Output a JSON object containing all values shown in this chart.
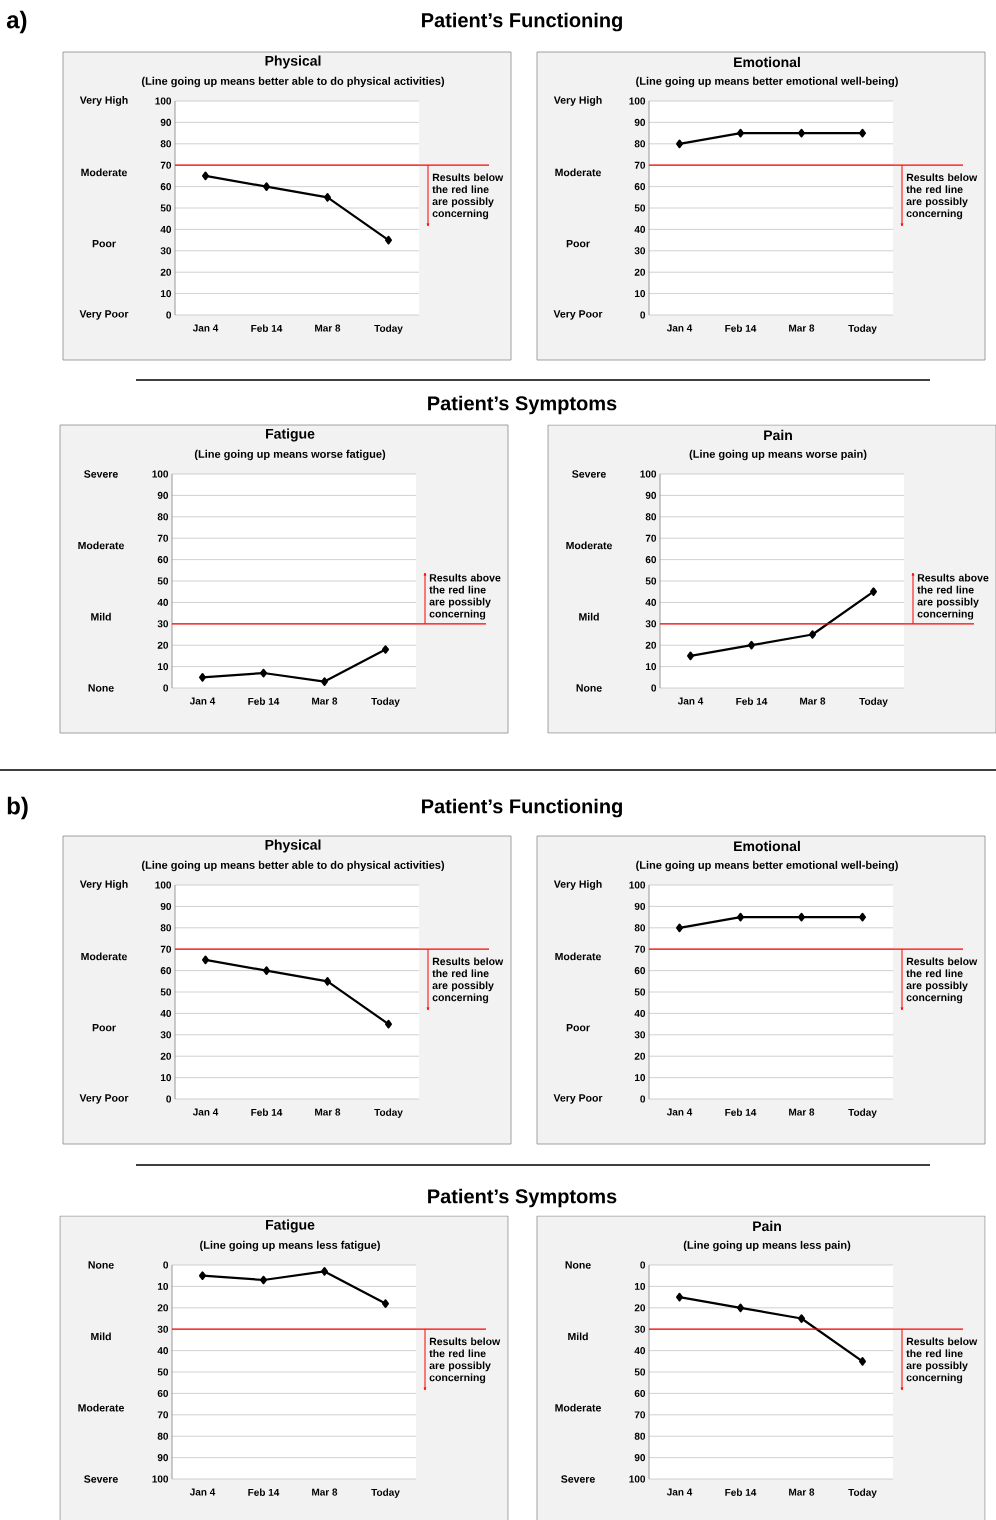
{
  "chart_data": [
    {
      "type": "other",
      "title": "Patient’s Functioning",
      "annotations": [
        "a)"
      ]
    },
    {
      "type": "line",
      "title": "Physical",
      "subtitle": "(Line going up means better able to do physical activities)",
      "categories": [
        "Jan 4",
        "Feb 14",
        "Mar 8",
        "Today"
      ],
      "values": [
        65,
        60,
        55,
        35
      ],
      "color": "#000000",
      "marker": "diamond",
      "grid": "y",
      "ylim": [
        0,
        100
      ],
      "yticks": [
        0,
        10,
        20,
        30,
        40,
        50,
        60,
        70,
        80,
        90,
        100
      ],
      "annotations": [
        "Very High",
        "Moderate",
        "Poor",
        "Very Poor"
      ],
      "ref_lines": [
        {
          "axis": "y",
          "value": 70,
          "label": "Results below the red line are possibly concerning",
          "color": "#ff0000"
        }
      ]
    },
    {
      "type": "line",
      "title": "Emotional",
      "subtitle": "(Line going up means better emotional well-being)",
      "categories": [
        "Jan 4",
        "Feb 14",
        "Mar 8",
        "Today"
      ],
      "values": [
        80,
        85,
        85,
        85
      ],
      "color": "#000000",
      "marker": "diamond",
      "grid": "y",
      "ylim": [
        0,
        100
      ],
      "yticks": [
        0,
        10,
        20,
        30,
        40,
        50,
        60,
        70,
        80,
        90,
        100
      ],
      "annotations": [
        "Very High",
        "Moderate",
        "Poor",
        "Very Poor"
      ],
      "ref_lines": [
        {
          "axis": "y",
          "value": 70,
          "label": "Results below the red line are possibly concerning",
          "color": "#ff0000"
        }
      ]
    },
    {
      "type": "other",
      "title": "Patient’s Symptoms"
    },
    {
      "type": "line",
      "title": "Fatigue",
      "subtitle": "(Line going up means worse fatigue)",
      "categories": [
        "Jan 4",
        "Feb 14",
        "Mar 8",
        "Today"
      ],
      "values": [
        5,
        7,
        3,
        18
      ],
      "color": "#000000",
      "marker": "diamond",
      "grid": "y",
      "ylim": [
        0,
        100
      ],
      "yticks": [
        0,
        10,
        20,
        30,
        40,
        50,
        60,
        70,
        80,
        90,
        100
      ],
      "annotations": [
        "Severe",
        "Moderate",
        "Mild",
        "None"
      ],
      "ref_lines": [
        {
          "axis": "y",
          "value": 30,
          "label": "Results above the red line are possibly concerning",
          "color": "#ff0000"
        }
      ]
    },
    {
      "type": "line",
      "title": "Pain",
      "subtitle": "(Line going up means worse pain)",
      "categories": [
        "Jan 4",
        "Feb 14",
        "Mar 8",
        "Today"
      ],
      "values": [
        15,
        20,
        25,
        45
      ],
      "color": "#000000",
      "marker": "diamond",
      "grid": "y",
      "ylim": [
        0,
        100
      ],
      "yticks": [
        0,
        10,
        20,
        30,
        40,
        50,
        60,
        70,
        80,
        90,
        100
      ],
      "annotations": [
        "Severe",
        "Moderate",
        "Mild",
        "None"
      ],
      "ref_lines": [
        {
          "axis": "y",
          "value": 30,
          "label": "Results above the red line are possibly concerning",
          "color": "#ff0000"
        }
      ]
    },
    {
      "type": "other",
      "title": "Patient’s Functioning",
      "annotations": [
        "b)"
      ]
    },
    {
      "type": "line",
      "title": "Physical",
      "subtitle": "(Line going up means better able to do physical activities)",
      "categories": [
        "Jan 4",
        "Feb 14",
        "Mar 8",
        "Today"
      ],
      "values": [
        65,
        60,
        55,
        35
      ],
      "color": "#000000",
      "marker": "diamond",
      "grid": "y",
      "ylim": [
        0,
        100
      ],
      "yticks": [
        0,
        10,
        20,
        30,
        40,
        50,
        60,
        70,
        80,
        90,
        100
      ],
      "annotations": [
        "Very High",
        "Moderate",
        "Poor",
        "Very Poor"
      ],
      "ref_lines": [
        {
          "axis": "y",
          "value": 70,
          "label": "Results below the red line are possibly concerning",
          "color": "#ff0000"
        }
      ]
    },
    {
      "type": "line",
      "title": "Emotional",
      "subtitle": "(Line going up means better emotional well-being)",
      "categories": [
        "Jan 4",
        "Feb 14",
        "Mar 8",
        "Today"
      ],
      "values": [
        80,
        85,
        85,
        85
      ],
      "color": "#000000",
      "marker": "diamond",
      "grid": "y",
      "ylim": [
        0,
        100
      ],
      "yticks": [
        0,
        10,
        20,
        30,
        40,
        50,
        60,
        70,
        80,
        90,
        100
      ],
      "annotations": [
        "Very High",
        "Moderate",
        "Poor",
        "Very Poor"
      ],
      "ref_lines": [
        {
          "axis": "y",
          "value": 70,
          "label": "Results below the red line are possibly concerning",
          "color": "#ff0000"
        }
      ]
    },
    {
      "type": "other",
      "title": "Patient’s Symptoms"
    },
    {
      "type": "line",
      "title": "Fatigue",
      "subtitle": "(Line going up means less fatigue)",
      "categories": [
        "Jan 4",
        "Feb 14",
        "Mar 8",
        "Today"
      ],
      "values": [
        5,
        7,
        3,
        18
      ],
      "color": "#000000",
      "marker": "diamond",
      "grid": "y",
      "ylim": [
        100,
        0
      ],
      "yticks": [
        0,
        10,
        20,
        30,
        40,
        50,
        60,
        70,
        80,
        90,
        100
      ],
      "annotations": [
        "None",
        "Mild",
        "Moderate",
        "Severe"
      ],
      "ref_lines": [
        {
          "axis": "y",
          "value": 30,
          "label": "Results below the red line are possibly concerning",
          "color": "#ff0000"
        }
      ]
    },
    {
      "type": "line",
      "title": "Pain",
      "subtitle": "(Line going up means less pain)",
      "categories": [
        "Jan 4",
        "Feb 14",
        "Mar 8",
        "Today"
      ],
      "values": [
        15,
        20,
        25,
        45
      ],
      "color": "#000000",
      "marker": "diamond",
      "grid": "y",
      "ylim": [
        100,
        0
      ],
      "yticks": [
        0,
        10,
        20,
        30,
        40,
        50,
        60,
        70,
        80,
        90,
        100
      ],
      "annotations": [
        "None",
        "Mild",
        "Moderate",
        "Severe"
      ],
      "ref_lines": [
        {
          "axis": "y",
          "value": 30,
          "label": "Results below the red line are possibly concerning",
          "color": "#ff0000"
        }
      ]
    }
  ]
}
